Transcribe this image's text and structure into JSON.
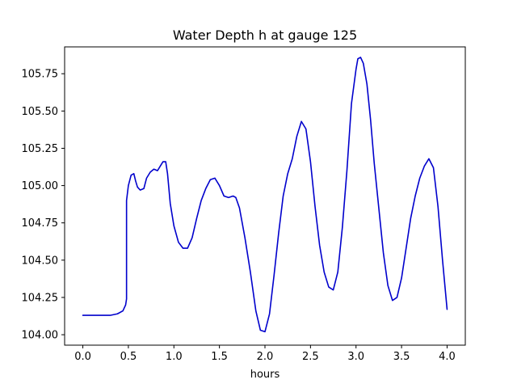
{
  "chart_data": {
    "type": "line",
    "title": "Water Depth h at gauge 125",
    "xlabel": "hours",
    "ylabel": "",
    "xlim": [
      -0.2,
      4.2
    ],
    "ylim": [
      103.93,
      105.93
    ],
    "xticks": [
      0.0,
      0.5,
      1.0,
      1.5,
      2.0,
      2.5,
      3.0,
      3.5,
      4.0
    ],
    "xtick_labels": [
      "0.0",
      "0.5",
      "1.0",
      "1.5",
      "2.0",
      "2.5",
      "3.0",
      "3.5",
      "4.0"
    ],
    "yticks": [
      104.0,
      104.25,
      104.5,
      104.75,
      105.0,
      105.25,
      105.5,
      105.75
    ],
    "ytick_labels": [
      "104.00",
      "104.25",
      "104.50",
      "104.75",
      "105.00",
      "105.25",
      "105.50",
      "105.75"
    ],
    "grid": false,
    "series": [
      {
        "name": "",
        "color": "#0000cc",
        "x": [
          0.0,
          0.02,
          0.1,
          0.2,
          0.3,
          0.38,
          0.44,
          0.47,
          0.48,
          0.48,
          0.5,
          0.53,
          0.56,
          0.58,
          0.6,
          0.63,
          0.67,
          0.7,
          0.74,
          0.78,
          0.82,
          0.85,
          0.88,
          0.91,
          0.93,
          0.96,
          1.0,
          1.05,
          1.1,
          1.15,
          1.2,
          1.25,
          1.3,
          1.35,
          1.4,
          1.45,
          1.5,
          1.55,
          1.6,
          1.65,
          1.68,
          1.72,
          1.78,
          1.84,
          1.9,
          1.95,
          2.0,
          2.05,
          2.1,
          2.15,
          2.2,
          2.25,
          2.3,
          2.35,
          2.4,
          2.45,
          2.5,
          2.55,
          2.6,
          2.65,
          2.7,
          2.75,
          2.8,
          2.85,
          2.9,
          2.95,
          3.0,
          3.02,
          3.05,
          3.08,
          3.12,
          3.16,
          3.2,
          3.25,
          3.3,
          3.35,
          3.4,
          3.45,
          3.5,
          3.55,
          3.6,
          3.65,
          3.7,
          3.75,
          3.8,
          3.85,
          3.9,
          3.95,
          4.0
        ],
        "values": [
          104.13,
          104.13,
          104.13,
          104.13,
          104.13,
          104.14,
          104.16,
          104.2,
          104.24,
          104.9,
          105.0,
          105.07,
          105.08,
          105.03,
          104.99,
          104.97,
          104.98,
          105.05,
          105.09,
          105.11,
          105.1,
          105.13,
          105.16,
          105.16,
          105.08,
          104.88,
          104.73,
          104.62,
          104.58,
          104.58,
          104.65,
          104.78,
          104.9,
          104.98,
          105.04,
          105.05,
          105.0,
          104.93,
          104.92,
          104.93,
          104.92,
          104.85,
          104.65,
          104.42,
          104.16,
          104.03,
          104.02,
          104.14,
          104.4,
          104.68,
          104.93,
          105.08,
          105.18,
          105.33,
          105.43,
          105.38,
          105.16,
          104.86,
          104.6,
          104.42,
          104.32,
          104.3,
          104.42,
          104.72,
          105.1,
          105.55,
          105.78,
          105.85,
          105.86,
          105.82,
          105.68,
          105.44,
          105.15,
          104.85,
          104.55,
          104.33,
          104.23,
          104.25,
          104.38,
          104.58,
          104.78,
          104.93,
          105.05,
          105.13,
          105.18,
          105.12,
          104.86,
          104.5,
          104.17
        ]
      }
    ]
  }
}
